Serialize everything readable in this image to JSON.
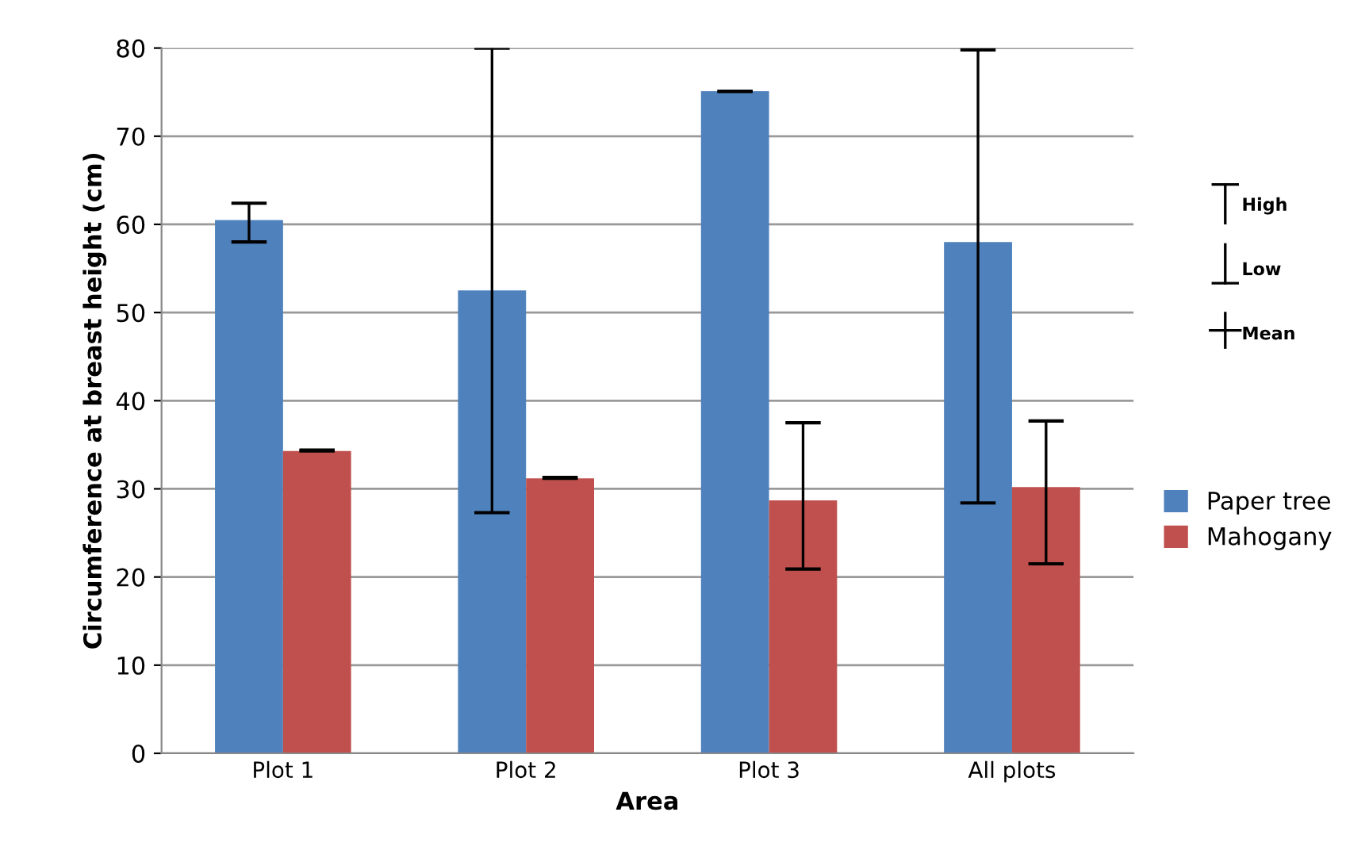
{
  "chart_data": {
    "type": "bar",
    "xlabel": "Area",
    "ylabel": "Circumference at breast height (cm)",
    "categories": [
      "Plot 1",
      "Plot 2",
      "Plot 3",
      "All plots"
    ],
    "series": [
      {
        "name": "Paper tree",
        "color": "#4f81bd",
        "values": [
          60.5,
          52.5,
          75.1,
          58.0
        ],
        "errors": [
          [
            58.0,
            62.4
          ],
          [
            27.3,
            80.0
          ],
          [
            75.1,
            75.1
          ],
          [
            28.4,
            79.8
          ]
        ]
      },
      {
        "name": "Mahogany",
        "color": "#c0504d",
        "values": [
          34.3,
          31.2,
          28.7,
          30.2
        ],
        "errors": [
          [
            34.3,
            34.4
          ],
          [
            31.2,
            31.3
          ],
          [
            20.9,
            37.5
          ],
          [
            21.5,
            37.7
          ]
        ]
      }
    ],
    "ylim": [
      0,
      80
    ],
    "yticks": [
      0,
      10,
      20,
      30,
      40,
      50,
      60,
      70,
      80
    ],
    "grid": "y",
    "legend": "right",
    "annotations": [
      "High",
      "Low",
      "Mean"
    ]
  }
}
